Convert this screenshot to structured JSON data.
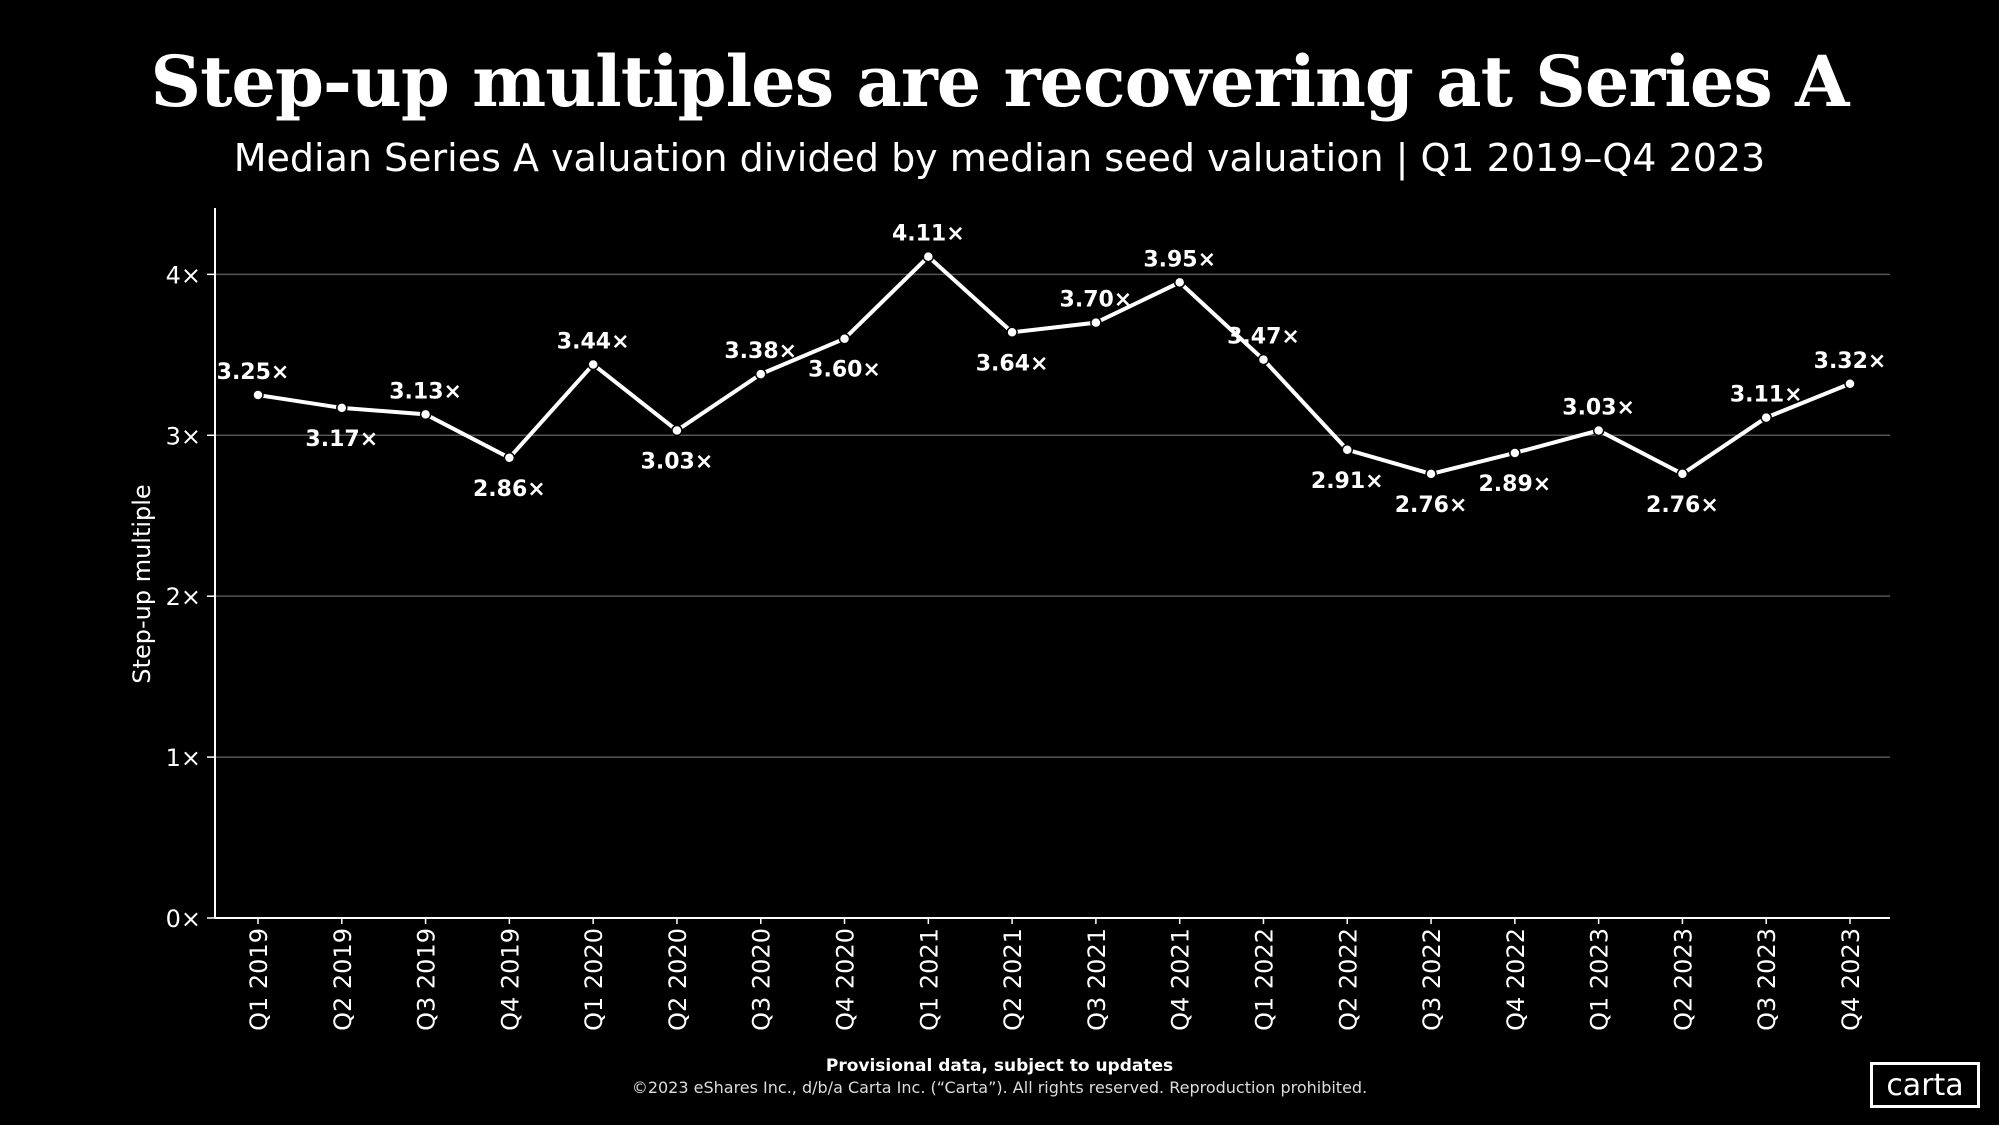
{
  "title": "Step-up multiples are recovering at Series A",
  "subtitle": "Median  Series A valuation divided by median seed valuation | Q1 2019–Q4 2023",
  "footnote": "Provisional data, subject to updates",
  "copyright": "©2023 eShares Inc., d/b/a Carta Inc. (“Carta”). All rights reserved. Reproduction prohibited.",
  "logo_text": "carta",
  "colors": {
    "background": "#000000",
    "line": "#ffffff",
    "grid": "#555555"
  },
  "chart_data": {
    "type": "line",
    "title": "Step-up multiples are recovering at Series A",
    "subtitle": "Median  Series A valuation divided by median seed valuation | Q1 2019–Q4 2023",
    "xlabel": "",
    "ylabel": "Step-up multiple",
    "ylim": [
      0,
      4.4
    ],
    "yticks": [
      0,
      1,
      2,
      3,
      4
    ],
    "ytick_labels": [
      "0×",
      "1×",
      "2×",
      "3×",
      "4×"
    ],
    "grid": true,
    "legend": "none",
    "categories": [
      "Q1 2019",
      "Q2 2019",
      "Q3 2019",
      "Q4 2019",
      "Q1 2020",
      "Q2 2020",
      "Q3 2020",
      "Q4 2020",
      "Q1 2021",
      "Q2 2021",
      "Q3 2021",
      "Q4 2021",
      "Q1 2022",
      "Q2 2022",
      "Q3 2022",
      "Q4 2022",
      "Q1 2023",
      "Q2 2023",
      "Q3 2023",
      "Q4 2023"
    ],
    "values": [
      3.25,
      3.17,
      3.13,
      2.86,
      3.44,
      3.03,
      3.38,
      3.6,
      4.11,
      3.64,
      3.7,
      3.95,
      3.47,
      2.91,
      2.76,
      2.89,
      3.03,
      2.76,
      3.11,
      3.32
    ],
    "data_labels": [
      "3.25×",
      "3.17×",
      "3.13×",
      "2.86×",
      "3.44×",
      "3.03×",
      "3.38×",
      "3.60×",
      "4.11×",
      "3.64×",
      "3.70×",
      "3.95×",
      "3.47×",
      "2.91×",
      "2.76×",
      "2.89×",
      "3.03×",
      "2.76×",
      "3.11×",
      "3.32×"
    ],
    "label_position": [
      "above",
      "below",
      "above",
      "below",
      "above",
      "below",
      "above",
      "below",
      "above",
      "below",
      "above",
      "above",
      "above",
      "below",
      "below",
      "below",
      "above",
      "below",
      "above",
      "above"
    ]
  }
}
